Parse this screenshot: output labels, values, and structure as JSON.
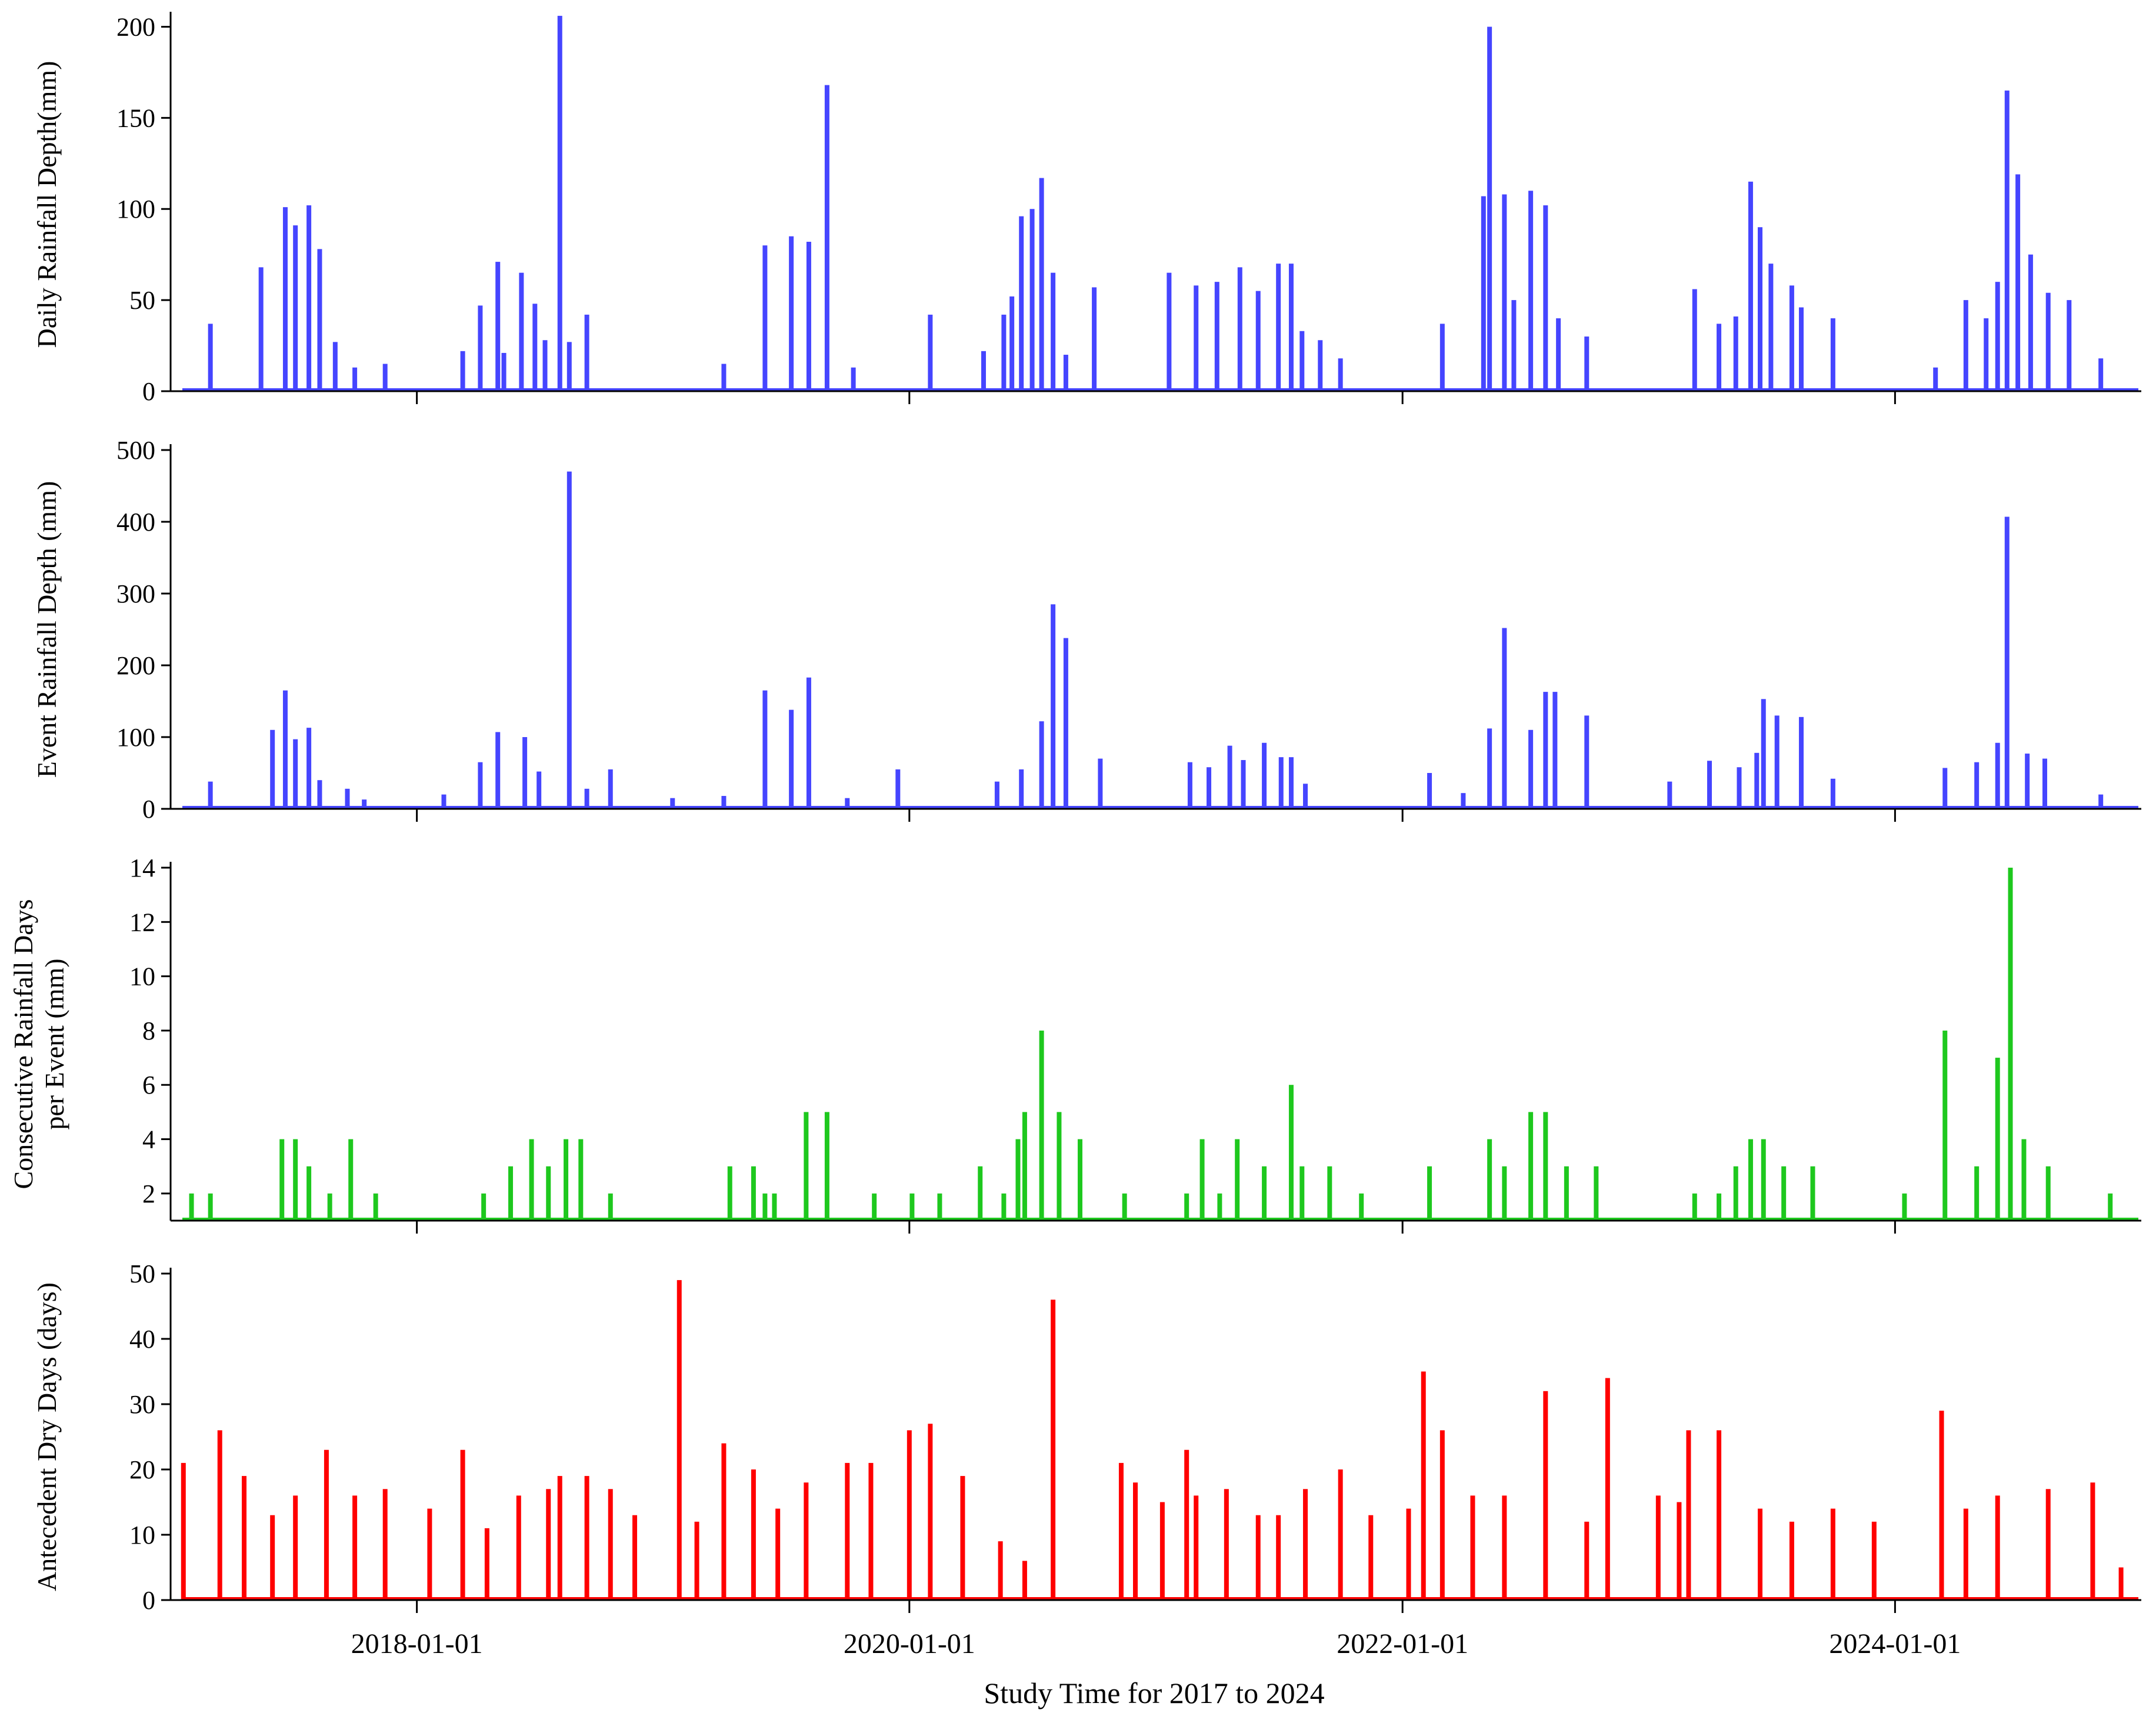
{
  "x_axis": {
    "title": "Study Time for 2017 to 2024",
    "tick_labels": [
      "2018-01-01",
      "2020-01-01",
      "2022-01-01",
      "2024-01-01"
    ]
  },
  "chart_data": [
    {
      "type": "bar",
      "ylabel": "Daily Rainfall Depth(mm)",
      "color": "#4545ff",
      "ylim": [
        0,
        205
      ],
      "yticks": [
        0,
        50,
        100,
        150,
        200
      ],
      "xlim": [
        "2017-01-01",
        "2024-12-31"
      ],
      "x": [
        "2017-03-01",
        "2017-05-15",
        "2017-06-20",
        "2017-07-05",
        "2017-07-25",
        "2017-08-10",
        "2017-09-02",
        "2017-10-01",
        "2017-11-15",
        "2018-03-10",
        "2018-04-05",
        "2018-05-01",
        "2018-05-10",
        "2018-06-05",
        "2018-06-25",
        "2018-07-10",
        "2018-08-01",
        "2018-08-15",
        "2018-09-10",
        "2019-04-01",
        "2019-06-01",
        "2019-07-10",
        "2019-08-05",
        "2019-09-01",
        "2019-10-10",
        "2020-02-01",
        "2020-04-20",
        "2020-05-20",
        "2020-06-01",
        "2020-06-15",
        "2020-07-01",
        "2020-07-15",
        "2020-08-01",
        "2020-08-20",
        "2020-10-01",
        "2021-01-20",
        "2021-03-01",
        "2021-04-01",
        "2021-05-05",
        "2021-06-01",
        "2021-07-01",
        "2021-07-20",
        "2021-08-05",
        "2021-09-01",
        "2021-10-01",
        "2022-03-01",
        "2022-05-01",
        "2022-05-10",
        "2022-06-01",
        "2022-06-15",
        "2022-07-10",
        "2022-08-01",
        "2022-08-20",
        "2022-10-01",
        "2023-03-10",
        "2023-04-15",
        "2023-05-10",
        "2023-06-01",
        "2023-06-15",
        "2023-07-01",
        "2023-08-01",
        "2023-08-15",
        "2023-10-01",
        "2024-03-01",
        "2024-04-15",
        "2024-05-15",
        "2024-06-01",
        "2024-06-15",
        "2024-07-01",
        "2024-07-20",
        "2024-08-15",
        "2024-09-15",
        "2024-11-01"
      ],
      "values": [
        37,
        68,
        101,
        91,
        102,
        78,
        27,
        13,
        15,
        22,
        47,
        71,
        21,
        65,
        48,
        28,
        206,
        27,
        42,
        15,
        80,
        85,
        82,
        168,
        13,
        42,
        22,
        42,
        52,
        96,
        100,
        117,
        65,
        20,
        57,
        65,
        58,
        60,
        68,
        55,
        70,
        70,
        33,
        28,
        18,
        37,
        107,
        200,
        108,
        50,
        110,
        102,
        40,
        30,
        56,
        37,
        41,
        115,
        90,
        70,
        58,
        46,
        40,
        13,
        50,
        40,
        60,
        165,
        119,
        75,
        54,
        50,
        18
      ]
    },
    {
      "type": "bar",
      "ylabel": "Event Rainfall Depth (mm)",
      "color": "#4545ff",
      "ylim": [
        0,
        500
      ],
      "yticks": [
        0,
        100,
        200,
        300,
        400,
        500
      ],
      "xlim": [
        "2017-01-01",
        "2024-12-31"
      ],
      "x": [
        "2017-03-01",
        "2017-06-01",
        "2017-06-20",
        "2017-07-05",
        "2017-07-25",
        "2017-08-10",
        "2017-09-20",
        "2017-10-15",
        "2018-02-10",
        "2018-04-05",
        "2018-05-01",
        "2018-06-10",
        "2018-07-01",
        "2018-08-15",
        "2018-09-10",
        "2018-10-15",
        "2019-01-15",
        "2019-04-01",
        "2019-06-01",
        "2019-07-10",
        "2019-08-05",
        "2019-10-01",
        "2019-12-15",
        "2020-05-10",
        "2020-06-15",
        "2020-07-15",
        "2020-08-01",
        "2020-08-20",
        "2020-10-10",
        "2021-02-20",
        "2021-03-20",
        "2021-04-20",
        "2021-05-10",
        "2021-06-10",
        "2021-07-05",
        "2021-07-20",
        "2021-08-10",
        "2022-02-10",
        "2022-04-01",
        "2022-05-10",
        "2022-06-01",
        "2022-07-10",
        "2022-08-01",
        "2022-08-15",
        "2022-10-01",
        "2023-02-01",
        "2023-04-01",
        "2023-05-15",
        "2023-06-10",
        "2023-06-20",
        "2023-07-10",
        "2023-08-15",
        "2023-10-01",
        "2024-03-15",
        "2024-05-01",
        "2024-06-01",
        "2024-06-15",
        "2024-07-15",
        "2024-08-10",
        "2024-11-01"
      ],
      "values": [
        38,
        110,
        165,
        97,
        113,
        40,
        28,
        13,
        20,
        65,
        107,
        100,
        52,
        470,
        28,
        55,
        15,
        18,
        165,
        138,
        183,
        15,
        55,
        38,
        55,
        122,
        285,
        238,
        70,
        65,
        58,
        88,
        68,
        92,
        72,
        72,
        35,
        50,
        22,
        112,
        252,
        110,
        163,
        163,
        130,
        38,
        67,
        58,
        78,
        153,
        130,
        128,
        42,
        57,
        65,
        92,
        407,
        77,
        70,
        20
      ]
    },
    {
      "type": "bar",
      "ylabel": "Consecutive Rainfall Days per Event (mm)",
      "color": "#1ec81e",
      "ylim": [
        1,
        14
      ],
      "yticks": [
        2,
        4,
        6,
        8,
        10,
        12,
        14
      ],
      "xlim": [
        "2017-01-01",
        "2024-12-31"
      ],
      "x": [
        "2017-02-01",
        "2017-03-01",
        "2017-06-15",
        "2017-07-05",
        "2017-07-25",
        "2017-08-25",
        "2017-09-25",
        "2017-11-01",
        "2018-04-10",
        "2018-05-20",
        "2018-06-20",
        "2018-07-15",
        "2018-08-10",
        "2018-09-01",
        "2018-10-15",
        "2019-04-10",
        "2019-05-15",
        "2019-06-01",
        "2019-06-15",
        "2019-08-01",
        "2019-09-01",
        "2019-11-10",
        "2020-01-05",
        "2020-02-15",
        "2020-04-15",
        "2020-05-20",
        "2020-06-10",
        "2020-06-20",
        "2020-07-15",
        "2020-08-10",
        "2020-09-10",
        "2020-11-15",
        "2021-02-15",
        "2021-03-10",
        "2021-04-05",
        "2021-05-01",
        "2021-06-10",
        "2021-07-20",
        "2021-08-05",
        "2021-09-15",
        "2021-11-01",
        "2022-02-10",
        "2022-05-10",
        "2022-06-01",
        "2022-07-10",
        "2022-08-01",
        "2022-09-01",
        "2022-10-15",
        "2023-03-10",
        "2023-04-15",
        "2023-05-10",
        "2023-06-01",
        "2023-06-20",
        "2023-07-20",
        "2023-09-01",
        "2024-01-15",
        "2024-03-15",
        "2024-05-01",
        "2024-06-01",
        "2024-06-20",
        "2024-07-10",
        "2024-08-15",
        "2024-11-15"
      ],
      "values": [
        2,
        2,
        4,
        4,
        3,
        2,
        4,
        2,
        2,
        3,
        4,
        3,
        4,
        4,
        2,
        3,
        3,
        2,
        2,
        5,
        5,
        2,
        2,
        2,
        3,
        2,
        4,
        5,
        8,
        5,
        4,
        2,
        2,
        4,
        2,
        4,
        3,
        6,
        3,
        3,
        2,
        3,
        4,
        3,
        5,
        5,
        3,
        3,
        2,
        2,
        3,
        4,
        4,
        3,
        3,
        2,
        8,
        3,
        7,
        14,
        4,
        3,
        2
      ]
    },
    {
      "type": "bar",
      "ylabel": "Antecedent Dry Days (days)",
      "color": "#ff0000",
      "ylim": [
        0,
        50
      ],
      "yticks": [
        0,
        10,
        20,
        30,
        40,
        50
      ],
      "xlim": [
        "2017-01-01",
        "2024-12-31"
      ],
      "x": [
        "2017-01-20",
        "2017-03-15",
        "2017-04-20",
        "2017-06-01",
        "2017-07-05",
        "2017-08-20",
        "2017-10-01",
        "2017-11-15",
        "2018-01-20",
        "2018-03-10",
        "2018-04-15",
        "2018-06-01",
        "2018-07-15",
        "2018-08-01",
        "2018-09-10",
        "2018-10-15",
        "2018-11-20",
        "2019-01-25",
        "2019-02-20",
        "2019-04-01",
        "2019-05-15",
        "2019-06-20",
        "2019-08-01",
        "2019-10-01",
        "2019-11-05",
        "2020-01-01",
        "2020-02-01",
        "2020-03-20",
        "2020-05-15",
        "2020-06-20",
        "2020-08-01",
        "2020-11-10",
        "2020-12-01",
        "2021-01-10",
        "2021-02-15",
        "2021-03-01",
        "2021-04-15",
        "2021-06-01",
        "2021-07-01",
        "2021-08-10",
        "2021-10-01",
        "2021-11-15",
        "2022-01-10",
        "2022-02-01",
        "2022-03-01",
        "2022-04-15",
        "2022-06-01",
        "2022-08-01",
        "2022-10-01",
        "2022-11-01",
        "2023-01-15",
        "2023-02-15",
        "2023-03-01",
        "2023-04-15",
        "2023-06-15",
        "2023-08-01",
        "2023-10-01",
        "2023-12-01",
        "2024-03-10",
        "2024-04-15",
        "2024-06-01",
        "2024-08-15",
        "2024-10-20",
        "2024-12-01"
      ],
      "values": [
        21,
        26,
        19,
        13,
        16,
        23,
        16,
        17,
        14,
        23,
        11,
        16,
        17,
        19,
        19,
        17,
        13,
        49,
        12,
        24,
        20,
        14,
        18,
        21,
        21,
        26,
        27,
        19,
        9,
        6,
        46,
        21,
        18,
        15,
        23,
        16,
        17,
        13,
        13,
        17,
        20,
        13,
        14,
        35,
        26,
        16,
        16,
        32,
        12,
        34,
        16,
        15,
        26,
        26,
        14,
        12,
        14,
        12,
        29,
        14,
        16,
        17,
        18,
        5
      ]
    }
  ]
}
